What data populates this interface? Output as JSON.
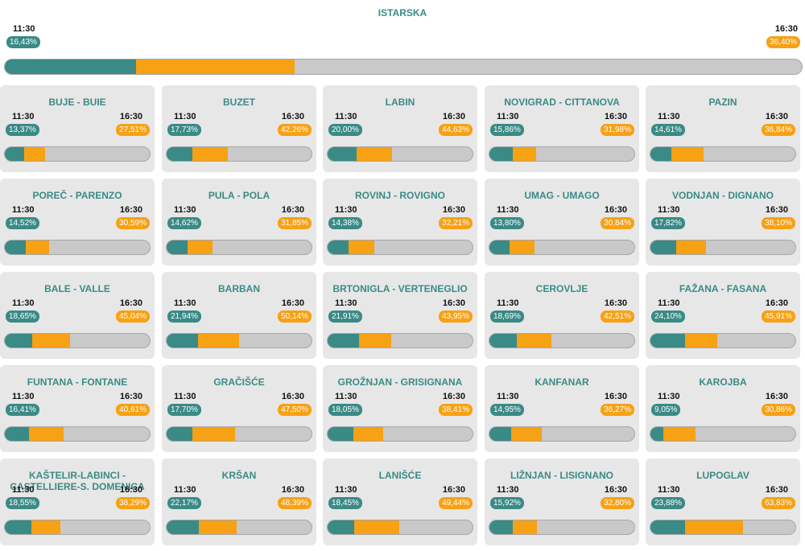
{
  "chart_data": {
    "type": "bar",
    "colors": {
      "t1130": "#3a8a86",
      "t1630": "#f7a114",
      "rest": "#c9c9c9"
    },
    "time_labels": [
      "11:30",
      "16:30"
    ],
    "summary": {
      "name": "ISTARSKA",
      "v1130": 16.43,
      "v1630": 36.4,
      "l1130": "16,43%",
      "l1630": "36,40%"
    },
    "municipalities": [
      {
        "name": "BUJE - BUIE",
        "v1130": 13.37,
        "v1630": 27.51,
        "l1130": "13,37%",
        "l1630": "27,51%"
      },
      {
        "name": "BUZET",
        "v1130": 17.73,
        "v1630": 42.26,
        "l1130": "17,73%",
        "l1630": "42,26%"
      },
      {
        "name": "LABIN",
        "v1130": 20.0,
        "v1630": 44.63,
        "l1130": "20,00%",
        "l1630": "44,63%"
      },
      {
        "name": "NOVIGRAD - CITTANOVA",
        "v1130": 15.86,
        "v1630": 31.98,
        "l1130": "15,86%",
        "l1630": "31,98%"
      },
      {
        "name": "PAZIN",
        "v1130": 14.61,
        "v1630": 36.84,
        "l1130": "14,61%",
        "l1630": "36,84%"
      },
      {
        "name": "POREČ - PARENZO",
        "v1130": 14.52,
        "v1630": 30.59,
        "l1130": "14,52%",
        "l1630": "30,59%"
      },
      {
        "name": "PULA - POLA",
        "v1130": 14.62,
        "v1630": 31.85,
        "l1130": "14,62%",
        "l1630": "31,85%"
      },
      {
        "name": "ROVINJ - ROVIGNO",
        "v1130": 14.38,
        "v1630": 32.21,
        "l1130": "14,38%",
        "l1630": "32,21%"
      },
      {
        "name": "UMAG - UMAGO",
        "v1130": 13.8,
        "v1630": 30.84,
        "l1130": "13,80%",
        "l1630": "30,84%"
      },
      {
        "name": "VODNJAN - DIGNANO",
        "v1130": 17.82,
        "v1630": 38.1,
        "l1130": "17,82%",
        "l1630": "38,10%"
      },
      {
        "name": "BALE - VALLE",
        "v1130": 18.65,
        "v1630": 45.04,
        "l1130": "18,65%",
        "l1630": "45,04%"
      },
      {
        "name": "BARBAN",
        "v1130": 21.94,
        "v1630": 50.14,
        "l1130": "21,94%",
        "l1630": "50,14%"
      },
      {
        "name": "BRTONIGLA - VERTENEGLIO",
        "v1130": 21.91,
        "v1630": 43.95,
        "l1130": "21,91%",
        "l1630": "43,95%"
      },
      {
        "name": "CEROVLJE",
        "v1130": 18.69,
        "v1630": 42.51,
        "l1130": "18,69%",
        "l1630": "42,51%"
      },
      {
        "name": "FAŽANA - FASANA",
        "v1130": 24.1,
        "v1630": 45.91,
        "l1130": "24,10%",
        "l1630": "45,91%"
      },
      {
        "name": "FUNTANA - FONTANE",
        "v1130": 16.41,
        "v1630": 40.61,
        "l1130": "16,41%",
        "l1630": "40,61%"
      },
      {
        "name": "GRAČIŠĆE",
        "v1130": 17.7,
        "v1630": 47.5,
        "l1130": "17,70%",
        "l1630": "47,50%"
      },
      {
        "name": "GROŽNJAN - GRISIGNANA",
        "v1130": 18.05,
        "v1630": 38.41,
        "l1130": "18,05%",
        "l1630": "38,41%"
      },
      {
        "name": "KANFANAR",
        "v1130": 14.95,
        "v1630": 36.27,
        "l1130": "14,95%",
        "l1630": "36,27%"
      },
      {
        "name": "KAROJBA",
        "v1130": 9.05,
        "v1630": 30.86,
        "l1130": "9,05%",
        "l1630": "30,86%"
      },
      {
        "name": "KAŠTELIR-LABINCI - CASTELLIERE-S. DOMENICA",
        "v1130": 18.55,
        "v1630": 38.29,
        "l1130": "18,55%",
        "l1630": "38,29%"
      },
      {
        "name": "KRŠAN",
        "v1130": 22.17,
        "v1630": 48.39,
        "l1130": "22,17%",
        "l1630": "48,39%"
      },
      {
        "name": "LANIŠĆE",
        "v1130": 18.45,
        "v1630": 49.44,
        "l1130": "18,45%",
        "l1630": "49,44%"
      },
      {
        "name": "LIŽNJAN - LISIGNANO",
        "v1130": 15.92,
        "v1630": 32.8,
        "l1130": "15,92%",
        "l1630": "32,80%"
      },
      {
        "name": "LUPOGLAV",
        "v1130": 23.88,
        "v1630": 63.83,
        "l1130": "23,88%",
        "l1630": "63,83%"
      }
    ]
  }
}
